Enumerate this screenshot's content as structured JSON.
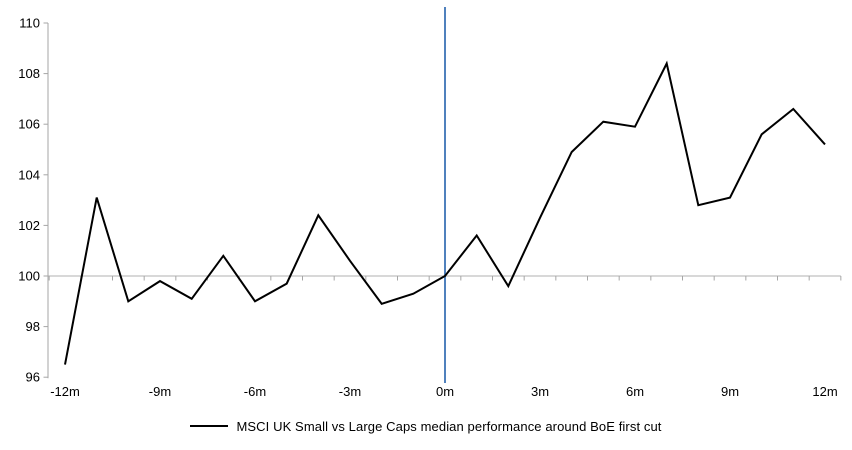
{
  "chart_data": {
    "type": "line",
    "title": "",
    "xlabel": "",
    "ylabel": "",
    "months": [
      -12,
      -11,
      -10,
      -9,
      -8,
      -7,
      -6,
      -5,
      -4,
      -3,
      -2,
      -1,
      0,
      1,
      2,
      3,
      4,
      5,
      6,
      7,
      8,
      9,
      10,
      11,
      12
    ],
    "series": [
      {
        "name": "MSCI UK Small vs Large Caps median performance around BoE first cut",
        "values": [
          96.5,
          103.1,
          99.0,
          99.8,
          99.1,
          100.8,
          99.0,
          99.7,
          102.4,
          100.6,
          98.9,
          99.3,
          100.0,
          101.6,
          99.6,
          102.3,
          104.9,
          106.1,
          105.9,
          108.4,
          102.8,
          103.1,
          105.6,
          106.6,
          105.2
        ]
      }
    ],
    "xticks": {
      "months": [
        -12,
        -9,
        -6,
        -3,
        0,
        3,
        6,
        9,
        12
      ],
      "labels": [
        "-12m",
        "-9m",
        "-6m",
        "-3m",
        "0m",
        "3m",
        "6m",
        "9m",
        "12m"
      ]
    },
    "yticks": [
      96,
      98,
      100,
      102,
      104,
      106,
      108,
      110
    ],
    "ylim": [
      96,
      110
    ],
    "baseline_value": 100,
    "event_line_month": 0,
    "legend_position": "bottom",
    "grid": "off",
    "colors": {
      "series": "#000000",
      "event_line": "#4f81bd",
      "baseline_axis": "#c0c0c0",
      "y_axis": "#a6a6a6",
      "tick": "#a6a6a6",
      "text": "#000000",
      "background": "#ffffff"
    }
  }
}
